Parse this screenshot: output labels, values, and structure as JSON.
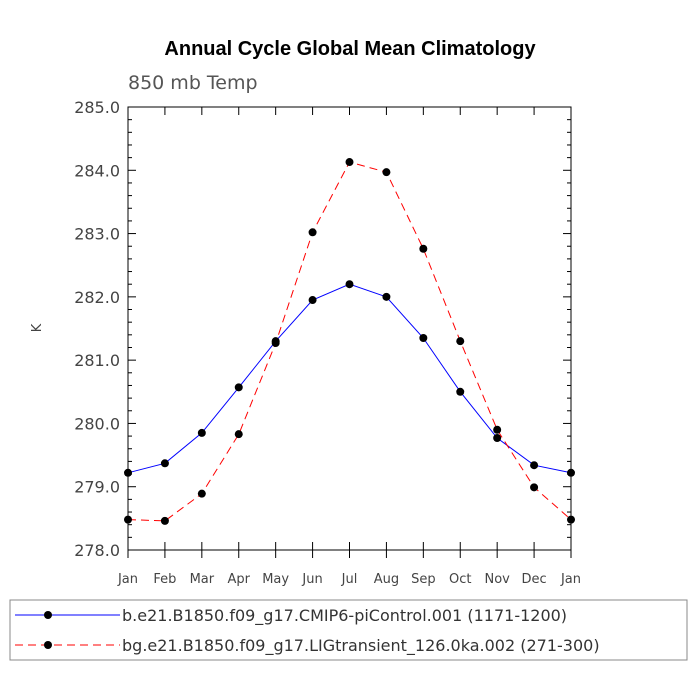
{
  "chart_data": {
    "type": "line",
    "title": "Annual Cycle Global Mean Climatology",
    "subtitle": "850 mb Temp",
    "ylabel": "K",
    "xlabel": "",
    "categories": [
      "Jan",
      "Feb",
      "Mar",
      "Apr",
      "May",
      "Jun",
      "Jul",
      "Aug",
      "Sep",
      "Oct",
      "Nov",
      "Dec",
      "Jan"
    ],
    "ylim": [
      278.0,
      285.0
    ],
    "yticks": [
      "278.0",
      "279.0",
      "280.0",
      "281.0",
      "282.0",
      "283.0",
      "284.0",
      "285.0"
    ],
    "grid": false,
    "legend_position": "bottom",
    "series": [
      {
        "name": "b.e21.B1850.f09_g17.CMIP6-piControl.001 (1171-1200)",
        "color": "#0000ff",
        "dash": "solid",
        "values": [
          279.22,
          279.37,
          279.85,
          280.57,
          281.3,
          281.95,
          282.2,
          282.0,
          281.35,
          280.5,
          279.77,
          279.34,
          279.22
        ]
      },
      {
        "name": "bg.e21.B1850.f09_g17.LIGtransient_126.0ka.002 (271-300)",
        "color": "#ff0000",
        "dash": "dashed",
        "values": [
          278.48,
          278.46,
          278.89,
          279.83,
          281.27,
          283.02,
          284.13,
          283.97,
          282.76,
          281.3,
          279.9,
          278.99,
          278.48
        ]
      }
    ]
  }
}
